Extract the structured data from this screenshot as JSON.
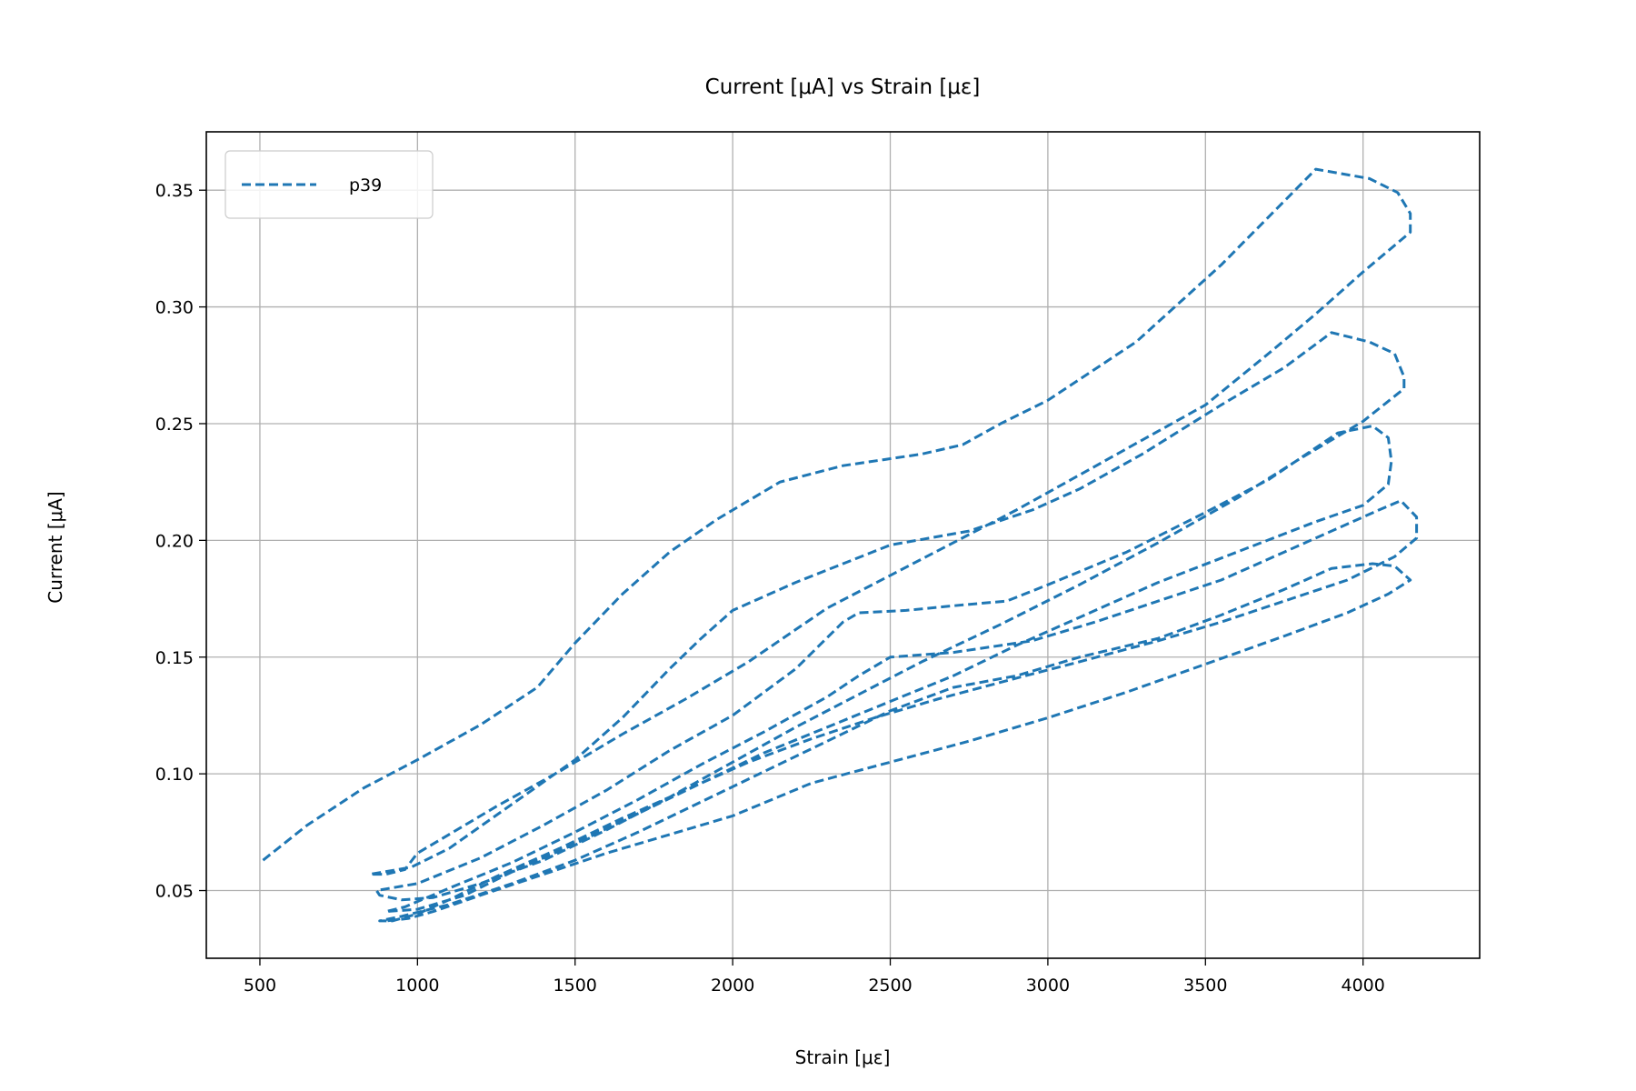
{
  "chart_data": {
    "type": "line",
    "title": "Current [μA] vs Strain [με]",
    "xlabel": "Strain [με]",
    "ylabel": "Current [μA]",
    "xlim": [
      330,
      4370
    ],
    "ylim": [
      0.021,
      0.375
    ],
    "xticks": [
      500,
      1000,
      1500,
      2000,
      2500,
      3000,
      3500,
      4000
    ],
    "yticks": [
      0.05,
      0.1,
      0.15,
      0.2,
      0.25,
      0.3,
      0.35
    ],
    "ytick_labels": [
      "0.05",
      "0.10",
      "0.15",
      "0.20",
      "0.25",
      "0.30",
      "0.35"
    ],
    "grid": true,
    "legend_position": "top-left",
    "line_style": "dashed",
    "series": [
      {
        "name": "p39",
        "color": "#1f77b4",
        "points": [
          [
            510,
            0.063
          ],
          [
            650,
            0.078
          ],
          [
            830,
            0.094
          ],
          [
            1000,
            0.106
          ],
          [
            1200,
            0.121
          ],
          [
            1380,
            0.137
          ],
          [
            1500,
            0.156
          ],
          [
            1650,
            0.177
          ],
          [
            1800,
            0.195
          ],
          [
            1950,
            0.209
          ],
          [
            2150,
            0.225
          ],
          [
            2350,
            0.232
          ],
          [
            2600,
            0.237
          ],
          [
            2730,
            0.241
          ],
          [
            2850,
            0.25
          ],
          [
            3000,
            0.26
          ],
          [
            3280,
            0.285
          ],
          [
            3550,
            0.318
          ],
          [
            3850,
            0.359
          ],
          [
            4020,
            0.355
          ],
          [
            4110,
            0.349
          ],
          [
            4150,
            0.34
          ],
          [
            4150,
            0.332
          ],
          [
            4000,
            0.315
          ],
          [
            3850,
            0.297
          ],
          [
            3700,
            0.28
          ],
          [
            3500,
            0.258
          ],
          [
            3300,
            0.243
          ],
          [
            3100,
            0.228
          ],
          [
            2900,
            0.213
          ],
          [
            2700,
            0.199
          ],
          [
            2500,
            0.185
          ],
          [
            2300,
            0.171
          ],
          [
            2050,
            0.148
          ],
          [
            1850,
            0.132
          ],
          [
            1650,
            0.117
          ],
          [
            1450,
            0.101
          ],
          [
            1250,
            0.086
          ],
          [
            1100,
            0.074
          ],
          [
            1000,
            0.066
          ],
          [
            960,
            0.059
          ],
          [
            900,
            0.057
          ],
          [
            850,
            0.057
          ],
          [
            980,
            0.06
          ],
          [
            1100,
            0.068
          ],
          [
            1300,
            0.087
          ],
          [
            1500,
            0.106
          ],
          [
            1650,
            0.124
          ],
          [
            1800,
            0.145
          ],
          [
            1900,
            0.158
          ],
          [
            2000,
            0.17
          ],
          [
            2200,
            0.182
          ],
          [
            2500,
            0.198
          ],
          [
            2750,
            0.204
          ],
          [
            2950,
            0.213
          ],
          [
            3100,
            0.222
          ],
          [
            3300,
            0.237
          ],
          [
            3550,
            0.258
          ],
          [
            3750,
            0.274
          ],
          [
            3900,
            0.289
          ],
          [
            4020,
            0.285
          ],
          [
            4100,
            0.28
          ],
          [
            4130,
            0.27
          ],
          [
            4130,
            0.265
          ],
          [
            4000,
            0.251
          ],
          [
            3800,
            0.235
          ],
          [
            3600,
            0.218
          ],
          [
            3350,
            0.199
          ],
          [
            3100,
            0.181
          ],
          [
            2850,
            0.164
          ],
          [
            2600,
            0.148
          ],
          [
            2400,
            0.134
          ],
          [
            2200,
            0.12
          ],
          [
            2000,
            0.105
          ],
          [
            1800,
            0.09
          ],
          [
            1600,
            0.076
          ],
          [
            1400,
            0.063
          ],
          [
            1200,
            0.053
          ],
          [
            1050,
            0.047
          ],
          [
            950,
            0.046
          ],
          [
            880,
            0.048
          ],
          [
            870,
            0.05
          ],
          [
            1000,
            0.053
          ],
          [
            1200,
            0.064
          ],
          [
            1400,
            0.078
          ],
          [
            1600,
            0.093
          ],
          [
            1800,
            0.11
          ],
          [
            2000,
            0.125
          ],
          [
            2200,
            0.145
          ],
          [
            2350,
            0.165
          ],
          [
            2400,
            0.169
          ],
          [
            2550,
            0.17
          ],
          [
            2700,
            0.172
          ],
          [
            2870,
            0.174
          ],
          [
            3000,
            0.181
          ],
          [
            3250,
            0.195
          ],
          [
            3500,
            0.212
          ],
          [
            3700,
            0.226
          ],
          [
            3920,
            0.246
          ],
          [
            4030,
            0.249
          ],
          [
            4080,
            0.244
          ],
          [
            4090,
            0.234
          ],
          [
            4080,
            0.224
          ],
          [
            4000,
            0.215
          ],
          [
            3850,
            0.208
          ],
          [
            3600,
            0.195
          ],
          [
            3350,
            0.182
          ],
          [
            3100,
            0.167
          ],
          [
            2900,
            0.155
          ],
          [
            2700,
            0.142
          ],
          [
            2500,
            0.131
          ],
          [
            2300,
            0.12
          ],
          [
            2100,
            0.109
          ],
          [
            1900,
            0.096
          ],
          [
            1700,
            0.083
          ],
          [
            1500,
            0.07
          ],
          [
            1300,
            0.058
          ],
          [
            1150,
            0.048
          ],
          [
            1000,
            0.042
          ],
          [
            900,
            0.041
          ],
          [
            960,
            0.043
          ],
          [
            1100,
            0.051
          ],
          [
            1300,
            0.062
          ],
          [
            1500,
            0.075
          ],
          [
            1700,
            0.089
          ],
          [
            1900,
            0.104
          ],
          [
            2100,
            0.118
          ],
          [
            2300,
            0.133
          ],
          [
            2400,
            0.142
          ],
          [
            2500,
            0.15
          ],
          [
            2700,
            0.152
          ],
          [
            2950,
            0.157
          ],
          [
            3150,
            0.165
          ],
          [
            3350,
            0.174
          ],
          [
            3550,
            0.183
          ],
          [
            3750,
            0.195
          ],
          [
            3950,
            0.207
          ],
          [
            4050,
            0.213
          ],
          [
            4120,
            0.217
          ],
          [
            4170,
            0.21
          ],
          [
            4170,
            0.201
          ],
          [
            4100,
            0.193
          ],
          [
            3950,
            0.183
          ],
          [
            3750,
            0.174
          ],
          [
            3550,
            0.165
          ],
          [
            3350,
            0.157
          ],
          [
            3100,
            0.148
          ],
          [
            2900,
            0.141
          ],
          [
            2650,
            0.132
          ],
          [
            2450,
            0.124
          ],
          [
            2250,
            0.115
          ],
          [
            2050,
            0.105
          ],
          [
            1850,
            0.093
          ],
          [
            1650,
            0.081
          ],
          [
            1450,
            0.068
          ],
          [
            1250,
            0.056
          ],
          [
            1100,
            0.046
          ],
          [
            1000,
            0.04
          ],
          [
            920,
            0.037
          ],
          [
            880,
            0.037
          ],
          [
            950,
            0.039
          ],
          [
            1100,
            0.044
          ],
          [
            1300,
            0.053
          ],
          [
            1500,
            0.063
          ],
          [
            1700,
            0.075
          ],
          [
            1900,
            0.088
          ],
          [
            2100,
            0.101
          ],
          [
            2300,
            0.114
          ],
          [
            2500,
            0.127
          ],
          [
            2700,
            0.137
          ],
          [
            2900,
            0.142
          ],
          [
            3100,
            0.15
          ],
          [
            3350,
            0.158
          ],
          [
            3550,
            0.168
          ],
          [
            3750,
            0.179
          ],
          [
            3900,
            0.188
          ],
          [
            4030,
            0.19
          ],
          [
            4100,
            0.189
          ],
          [
            4150,
            0.183
          ],
          [
            4080,
            0.177
          ],
          [
            3950,
            0.169
          ],
          [
            3750,
            0.159
          ],
          [
            3500,
            0.147
          ],
          [
            3250,
            0.135
          ],
          [
            3000,
            0.124
          ],
          [
            2750,
            0.114
          ],
          [
            2500,
            0.105
          ],
          [
            2250,
            0.096
          ],
          [
            2000,
            0.082
          ],
          [
            1800,
            0.074
          ],
          [
            1600,
            0.066
          ],
          [
            1400,
            0.057
          ],
          [
            1200,
            0.048
          ],
          [
            1050,
            0.041
          ],
          [
            970,
            0.038
          ],
          [
            900,
            0.037
          ]
        ]
      }
    ]
  }
}
